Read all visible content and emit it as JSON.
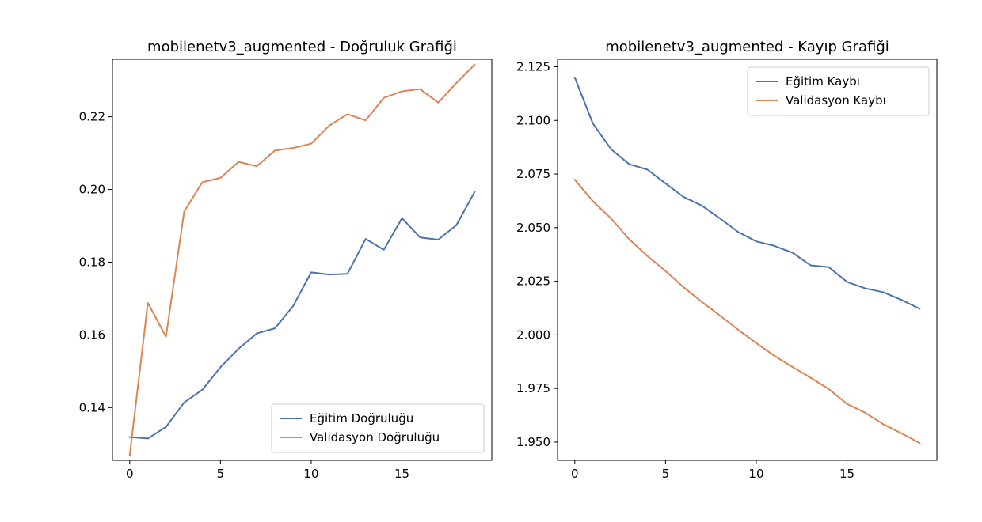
{
  "chart_data": [
    {
      "type": "line",
      "title": "mobilenetv3_augmented - Doğruluk Grafiği",
      "xlabel": "",
      "ylabel": "",
      "xlim": [
        -0.95,
        19.95
      ],
      "ylim": [
        0.1255,
        0.2358
      ],
      "xticks": [
        0,
        5,
        10,
        15
      ],
      "xtick_labels": [
        "0",
        "5",
        "10",
        "15"
      ],
      "yticks": [
        0.14,
        0.16,
        0.18,
        0.2,
        0.22
      ],
      "ytick_labels": [
        "0.14",
        "0.16",
        "0.18",
        "0.20",
        "0.22"
      ],
      "grid": false,
      "legend_position": "lower-right",
      "x": [
        0,
        1,
        2,
        3,
        4,
        5,
        6,
        7,
        8,
        9,
        10,
        11,
        12,
        13,
        14,
        15,
        16,
        17,
        18,
        19
      ],
      "series": [
        {
          "name": "Eğitim Doğruluğu",
          "color": "#4c72b0",
          "values": [
            0.1319,
            0.1315,
            0.1347,
            0.1414,
            0.1449,
            0.1511,
            0.1562,
            0.1604,
            0.1618,
            0.1679,
            0.1772,
            0.1766,
            0.1768,
            0.1864,
            0.1834,
            0.1921,
            0.1868,
            0.1862,
            0.1902,
            0.1993
          ]
        },
        {
          "name": "Validasyon Doğruluğu",
          "color": "#dd8452",
          "values": [
            0.1268,
            0.1688,
            0.1595,
            0.1939,
            0.202,
            0.2032,
            0.2076,
            0.2064,
            0.2107,
            0.2114,
            0.2126,
            0.2176,
            0.2207,
            0.219,
            0.2252,
            0.227,
            0.2276,
            0.2239,
            0.2293,
            0.2343
          ]
        }
      ]
    },
    {
      "type": "line",
      "title": "mobilenetv3_augmented - Kayıp Grafiği",
      "xlabel": "",
      "ylabel": "",
      "xlim": [
        -0.95,
        19.95
      ],
      "ylim": [
        1.9415,
        2.1285
      ],
      "xticks": [
        0,
        5,
        10,
        15
      ],
      "xtick_labels": [
        "0",
        "5",
        "10",
        "15"
      ],
      "yticks": [
        1.95,
        1.975,
        2.0,
        2.025,
        2.05,
        2.075,
        2.1,
        2.125
      ],
      "ytick_labels": [
        "1.950",
        "1.975",
        "2.000",
        "2.025",
        "2.050",
        "2.075",
        "2.100",
        "2.125"
      ],
      "grid": false,
      "legend_position": "upper-right",
      "x": [
        0,
        1,
        2,
        3,
        4,
        5,
        6,
        7,
        8,
        9,
        10,
        11,
        12,
        13,
        14,
        15,
        16,
        17,
        18,
        19
      ],
      "series": [
        {
          "name": "Eğitim Kaybı",
          "color": "#4c72b0",
          "values": [
            2.12,
            2.0985,
            2.0866,
            2.0796,
            2.0771,
            2.0706,
            2.0643,
            2.0603,
            2.0543,
            2.048,
            2.0436,
            2.0415,
            2.0383,
            2.0324,
            2.0316,
            2.0247,
            2.0217,
            2.0199,
            2.0163,
            2.0122
          ]
        },
        {
          "name": "Validasyon Kaybı",
          "color": "#dd8452",
          "values": [
            2.0724,
            2.0623,
            2.0543,
            2.0446,
            2.0368,
            2.0298,
            2.0222,
            2.0154,
            2.009,
            2.0024,
            1.9962,
            1.9902,
            1.985,
            1.98,
            1.9747,
            1.9678,
            1.9637,
            1.9583,
            1.9541,
            1.9496
          ]
        }
      ]
    }
  ]
}
